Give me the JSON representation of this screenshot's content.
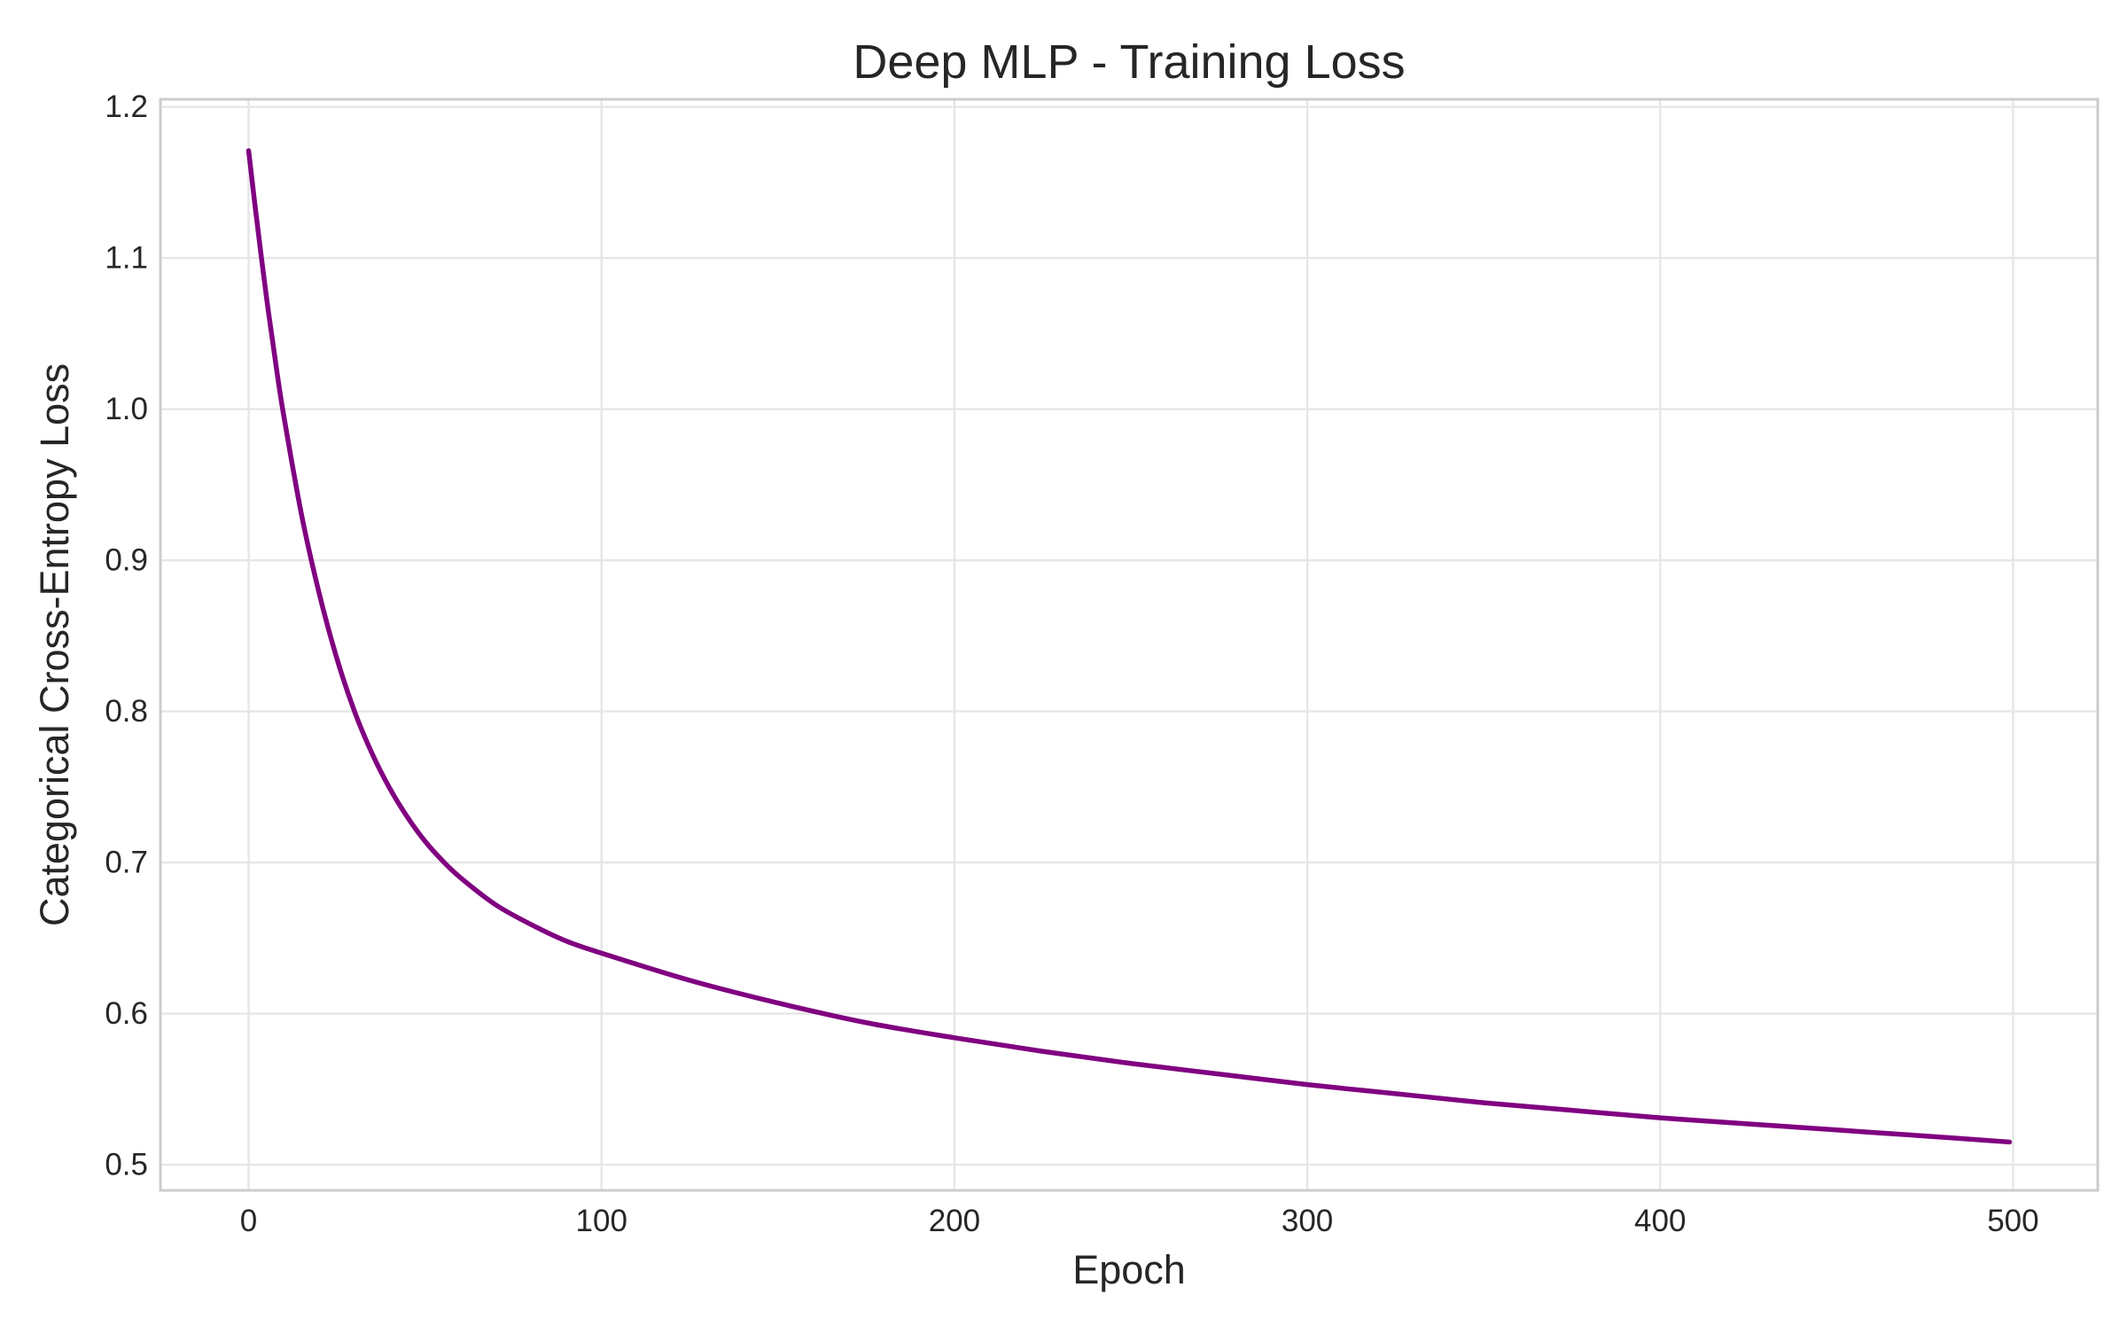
{
  "chart_data": {
    "type": "line",
    "title": "Deep MLP - Training Loss",
    "xlabel": "Epoch",
    "ylabel": "Categorical Cross-Entropy Loss",
    "xlim": [
      -25,
      524
    ],
    "ylim": [
      0.483,
      1.205
    ],
    "x_ticks": [
      0,
      100,
      200,
      300,
      400,
      500
    ],
    "x_tick_labels": [
      "0",
      "100",
      "200",
      "300",
      "400",
      "500"
    ],
    "y_ticks": [
      0.5,
      0.6,
      0.7,
      0.8,
      0.9,
      1.0,
      1.1,
      1.2
    ],
    "y_tick_labels": [
      "0.5",
      "0.6",
      "0.7",
      "0.8",
      "0.9",
      "1.0",
      "1.1",
      "1.2"
    ],
    "grid": true,
    "series": [
      {
        "color": "#800080",
        "x": [
          0,
          2,
          5,
          8,
          10,
          15,
          20,
          25,
          30,
          35,
          40,
          45,
          50,
          55,
          60,
          70,
          80,
          90,
          100,
          125,
          150,
          175,
          200,
          225,
          250,
          275,
          300,
          325,
          350,
          375,
          400,
          425,
          450,
          475,
          499
        ],
        "y": [
          1.171,
          1.131,
          1.075,
          1.025,
          0.995,
          0.93,
          0.878,
          0.835,
          0.8,
          0.772,
          0.749,
          0.73,
          0.714,
          0.701,
          0.69,
          0.672,
          0.659,
          0.648,
          0.64,
          0.622,
          0.607,
          0.594,
          0.584,
          0.575,
          0.567,
          0.56,
          0.553,
          0.547,
          0.541,
          0.536,
          0.531,
          0.527,
          0.523,
          0.519,
          0.515
        ]
      }
    ]
  }
}
